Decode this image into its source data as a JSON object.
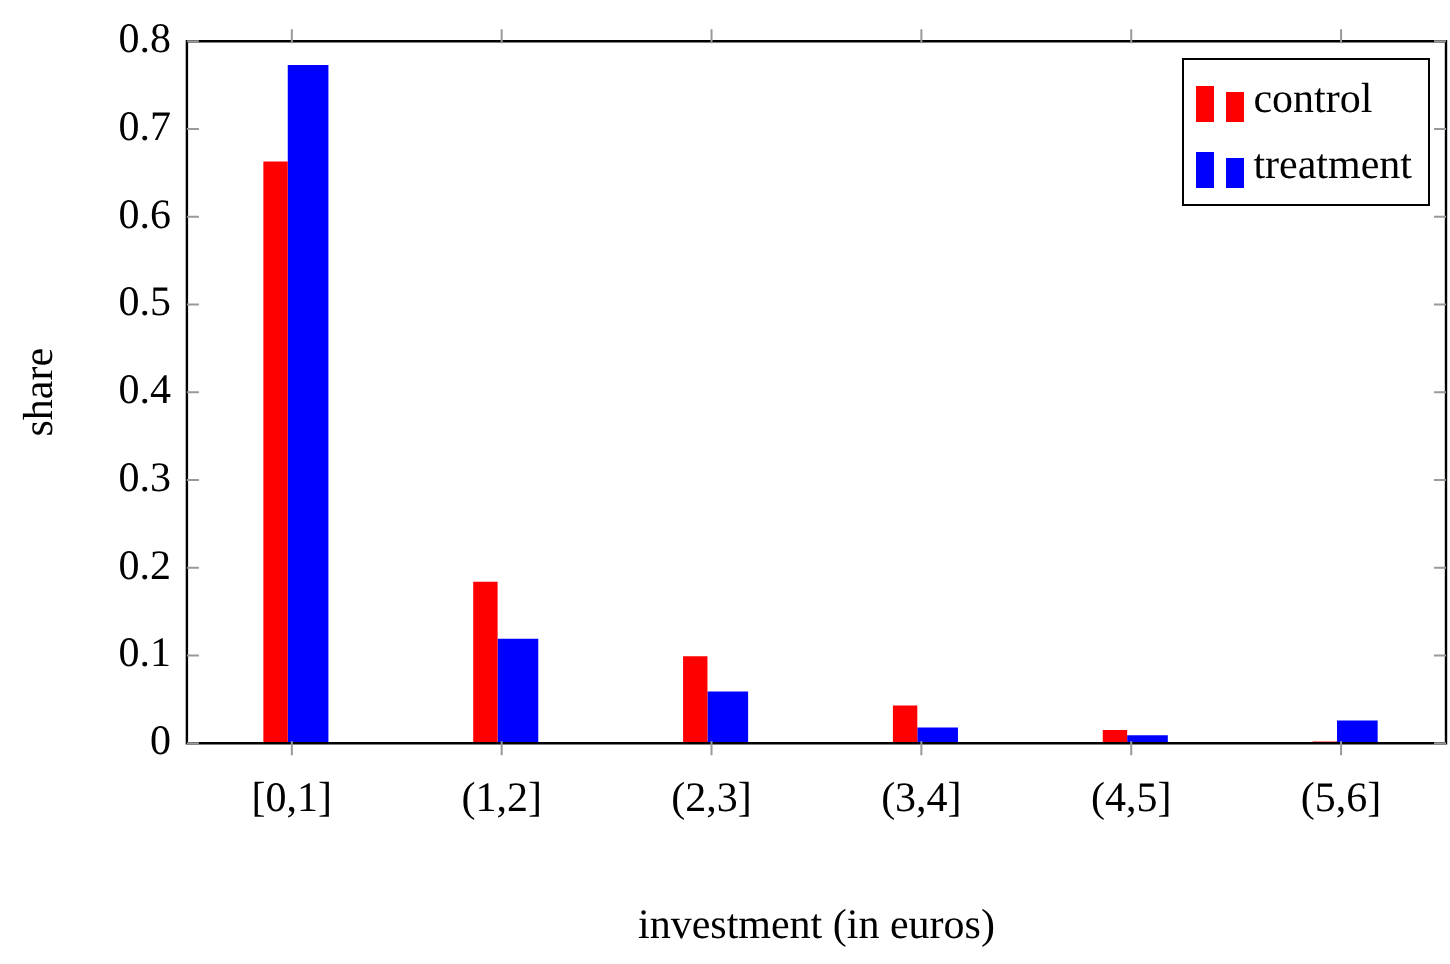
{
  "chart_data": {
    "type": "bar",
    "xlabel": "investment (in euros)",
    "ylabel": "share",
    "categories": [
      "[0,1]",
      "(1,2]",
      "(2,3]",
      "(3,4]",
      "(4,5]",
      "(5,6]"
    ],
    "series": [
      {
        "name": "control",
        "color": "#ff0000",
        "values": [
          0.663,
          0.184,
          0.099,
          0.043,
          0.015,
          0.002
        ]
      },
      {
        "name": "treatment",
        "color": "#0000ff",
        "values": [
          0.773,
          0.119,
          0.059,
          0.018,
          0.009,
          0.026
        ]
      }
    ],
    "ylim": [
      0,
      0.8
    ],
    "yticks": [
      0,
      0.1,
      0.2,
      0.3,
      0.4,
      0.5,
      0.6,
      0.7,
      0.8
    ],
    "grid": false,
    "legend": "top right"
  }
}
